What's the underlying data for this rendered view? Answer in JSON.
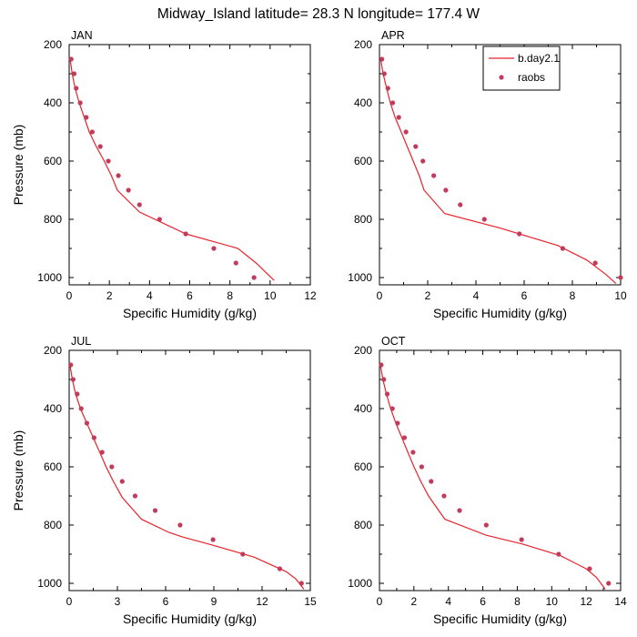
{
  "figure": {
    "title": "Midway_Island  latitude= 28.3 N longitude= 177.4 W"
  },
  "legend": {
    "model_label": "b.day2.1",
    "obs_label": "raobs",
    "model_color": "#e8232a",
    "obs_color": "#c23b5a"
  },
  "chart_data": [
    {
      "type": "line",
      "panel": "JAN",
      "title": "JAN",
      "xlabel": "Specific Humidity (g/kg)",
      "ylabel": "Pressure (mb)",
      "xlim": [
        0,
        12
      ],
      "ylim": [
        200,
        1025
      ],
      "xticks": [
        0,
        2,
        4,
        6,
        8,
        10,
        12
      ],
      "yticks": [
        200,
        400,
        600,
        800,
        1000
      ],
      "show_ylabel": true,
      "legend": false,
      "series": [
        {
          "name": "b.day2.1",
          "points": [
            [
              0.05,
              250
            ],
            [
              0.15,
              300
            ],
            [
              0.3,
              350
            ],
            [
              0.5,
              400
            ],
            [
              0.75,
              450
            ],
            [
              1.0,
              500
            ],
            [
              1.35,
              550
            ],
            [
              1.75,
              600
            ],
            [
              2.1,
              650
            ],
            [
              2.4,
              700
            ],
            [
              3.5,
              775
            ],
            [
              5.8,
              850
            ],
            [
              8.4,
              900
            ],
            [
              9.3,
              950
            ],
            [
              10.2,
              1010
            ]
          ]
        },
        {
          "name": "raobs",
          "points": [
            [
              0.1,
              250
            ],
            [
              0.25,
              300
            ],
            [
              0.35,
              350
            ],
            [
              0.55,
              400
            ],
            [
              0.85,
              450
            ],
            [
              1.15,
              500
            ],
            [
              1.55,
              550
            ],
            [
              1.95,
              600
            ],
            [
              2.45,
              650
            ],
            [
              2.95,
              700
            ],
            [
              3.5,
              750
            ],
            [
              4.5,
              800
            ],
            [
              5.8,
              850
            ],
            [
              7.2,
              900
            ],
            [
              8.3,
              950
            ],
            [
              9.2,
              1000
            ]
          ]
        }
      ]
    },
    {
      "type": "line",
      "panel": "APR",
      "title": "APR",
      "xlabel": "Specific Humidity (g/kg)",
      "ylabel": "Pressure (mb)",
      "xlim": [
        0,
        10
      ],
      "ylim": [
        200,
        1025
      ],
      "xticks": [
        0,
        2,
        4,
        6,
        8,
        10
      ],
      "yticks": [
        200,
        400,
        600,
        800,
        1000
      ],
      "show_ylabel": false,
      "legend": true,
      "series": [
        {
          "name": "b.day2.1",
          "points": [
            [
              0.05,
              250
            ],
            [
              0.15,
              300
            ],
            [
              0.3,
              350
            ],
            [
              0.45,
              400
            ],
            [
              0.65,
              450
            ],
            [
              0.9,
              500
            ],
            [
              1.15,
              550
            ],
            [
              1.4,
              600
            ],
            [
              1.65,
              650
            ],
            [
              1.85,
              700
            ],
            [
              2.7,
              780
            ],
            [
              5.0,
              830
            ],
            [
              7.4,
              890
            ],
            [
              8.6,
              940
            ],
            [
              9.4,
              990
            ],
            [
              9.8,
              1020
            ]
          ]
        },
        {
          "name": "raobs",
          "points": [
            [
              0.1,
              250
            ],
            [
              0.2,
              300
            ],
            [
              0.35,
              350
            ],
            [
              0.55,
              400
            ],
            [
              0.8,
              450
            ],
            [
              1.1,
              500
            ],
            [
              1.5,
              550
            ],
            [
              1.8,
              600
            ],
            [
              2.25,
              650
            ],
            [
              2.75,
              700
            ],
            [
              3.35,
              750
            ],
            [
              4.35,
              800
            ],
            [
              5.8,
              850
            ],
            [
              7.6,
              900
            ],
            [
              8.95,
              950
            ],
            [
              10.0,
              1000
            ]
          ]
        }
      ]
    },
    {
      "type": "line",
      "panel": "JUL",
      "title": "JUL",
      "xlabel": "Specific Humidity (g/kg)",
      "ylabel": "Pressure (mb)",
      "xlim": [
        0,
        15
      ],
      "ylim": [
        200,
        1025
      ],
      "xticks": [
        0,
        3,
        6,
        9,
        12,
        15
      ],
      "yticks": [
        200,
        400,
        600,
        800,
        1000
      ],
      "show_ylabel": true,
      "legend": false,
      "series": [
        {
          "name": "b.day2.1",
          "points": [
            [
              0.05,
              250
            ],
            [
              0.2,
              300
            ],
            [
              0.4,
              350
            ],
            [
              0.7,
              400
            ],
            [
              1.1,
              450
            ],
            [
              1.5,
              500
            ],
            [
              1.9,
              550
            ],
            [
              2.3,
              600
            ],
            [
              2.75,
              650
            ],
            [
              3.3,
              705
            ],
            [
              4.5,
              780
            ],
            [
              6.2,
              825
            ],
            [
              7.0,
              840
            ],
            [
              9.0,
              870
            ],
            [
              11.5,
              910
            ],
            [
              13.5,
              960
            ],
            [
              14.1,
              985
            ],
            [
              14.6,
              1020
            ]
          ]
        },
        {
          "name": "raobs",
          "points": [
            [
              0.1,
              250
            ],
            [
              0.25,
              300
            ],
            [
              0.5,
              350
            ],
            [
              0.75,
              400
            ],
            [
              1.1,
              450
            ],
            [
              1.55,
              500
            ],
            [
              2.05,
              550
            ],
            [
              2.65,
              600
            ],
            [
              3.3,
              650
            ],
            [
              4.1,
              700
            ],
            [
              5.35,
              750
            ],
            [
              6.9,
              800
            ],
            [
              8.95,
              850
            ],
            [
              10.8,
              900
            ],
            [
              13.1,
              950
            ],
            [
              14.45,
              1000
            ]
          ]
        }
      ]
    },
    {
      "type": "line",
      "panel": "OCT",
      "title": "OCT",
      "xlabel": "Specific Humidity (g/kg)",
      "ylabel": "Pressure (mb)",
      "xlim": [
        0,
        14
      ],
      "ylim": [
        200,
        1025
      ],
      "xticks": [
        0,
        2,
        4,
        6,
        8,
        10,
        12,
        14
      ],
      "yticks": [
        200,
        400,
        600,
        800,
        1000
      ],
      "show_ylabel": false,
      "legend": false,
      "series": [
        {
          "name": "b.day2.1",
          "points": [
            [
              0.05,
              250
            ],
            [
              0.2,
              300
            ],
            [
              0.4,
              350
            ],
            [
              0.65,
              400
            ],
            [
              0.95,
              450
            ],
            [
              1.3,
              500
            ],
            [
              1.65,
              550
            ],
            [
              2.0,
              600
            ],
            [
              2.4,
              650
            ],
            [
              2.85,
              700
            ],
            [
              3.8,
              780
            ],
            [
              6.2,
              835
            ],
            [
              8.3,
              865
            ],
            [
              10.5,
              905
            ],
            [
              12.0,
              950
            ],
            [
              12.6,
              980
            ],
            [
              13.1,
              1020
            ]
          ]
        },
        {
          "name": "raobs",
          "points": [
            [
              0.1,
              250
            ],
            [
              0.25,
              300
            ],
            [
              0.45,
              350
            ],
            [
              0.75,
              400
            ],
            [
              1.05,
              450
            ],
            [
              1.45,
              500
            ],
            [
              1.95,
              550
            ],
            [
              2.45,
              600
            ],
            [
              3.0,
              650
            ],
            [
              3.75,
              700
            ],
            [
              4.65,
              750
            ],
            [
              6.2,
              800
            ],
            [
              8.25,
              850
            ],
            [
              10.4,
              900
            ],
            [
              12.2,
              950
            ],
            [
              13.3,
              1000
            ]
          ]
        }
      ]
    }
  ]
}
